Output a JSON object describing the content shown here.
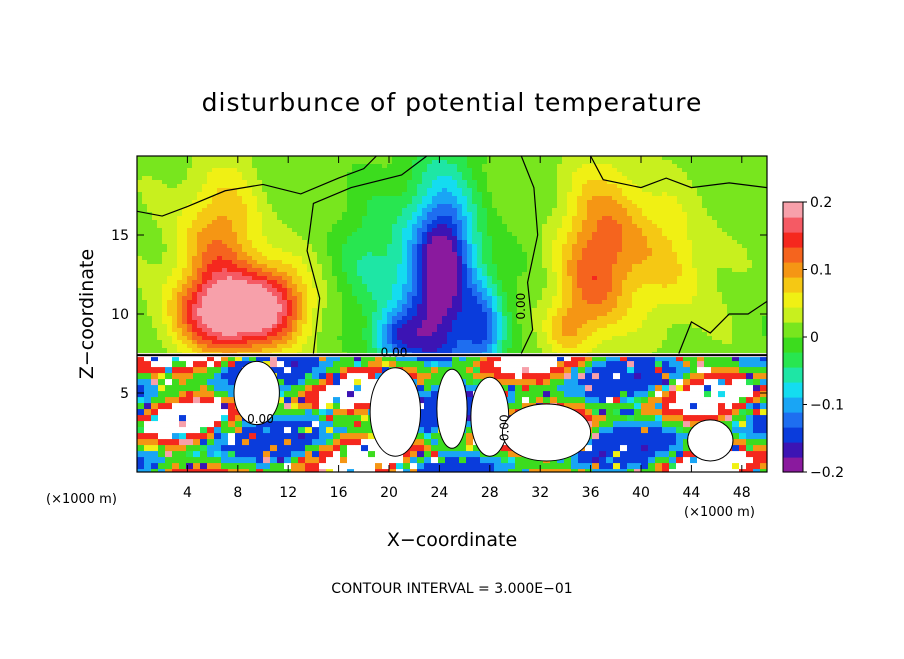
{
  "chart_data": {
    "type": "heatmap",
    "title": "disturbunce of potential temperature",
    "xlabel": "X−coordinate",
    "ylabel": "Z−coordinate",
    "x_unit": "(×1000 m)",
    "x_ticks": [
      4,
      8,
      12,
      16,
      20,
      24,
      28,
      32,
      36,
      40,
      44,
      48
    ],
    "y_ticks": [
      5,
      10,
      15
    ],
    "xlim": [
      0,
      50
    ],
    "ylim": [
      0,
      20
    ],
    "colorbar": {
      "ticks": [
        "0.2",
        "0.1",
        "0",
        "−0.1",
        "−0.2"
      ],
      "range": [
        -0.2,
        0.2
      ],
      "colors": [
        "#8a1a9e",
        "#3c14b4",
        "#0a3cdc",
        "#1e6ef0",
        "#19a5f5",
        "#14dcf0",
        "#1ee6a5",
        "#28e650",
        "#3cdc1e",
        "#78e61e",
        "#c8f01e",
        "#f0f014",
        "#f5c814",
        "#f59614",
        "#f5641e",
        "#f5281e",
        "#f55a64",
        "#f7a0aa"
      ]
    },
    "contour_labels": [
      "0.00",
      "0.00",
      "0.00",
      "0.00"
    ],
    "footer": "CONTOUR INTERVAL = 3.000E−01",
    "grid": false,
    "legend_placement": "right"
  }
}
